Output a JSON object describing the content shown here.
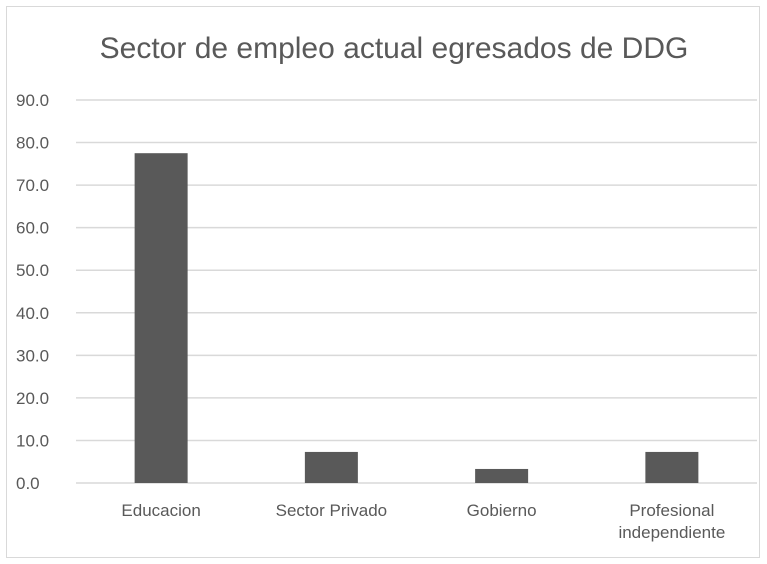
{
  "chart_data": {
    "type": "bar",
    "title": "Sector de empleo actual egresados de DDG",
    "categories": [
      [
        "Educacion"
      ],
      [
        "Sector Privado"
      ],
      [
        "Gobierno"
      ],
      [
        "Profesional",
        "independiente"
      ]
    ],
    "values": [
      77.5,
      7.3,
      3.3,
      7.3
    ],
    "ylim": [
      0,
      90
    ],
    "yticks": [
      "0.0",
      "10.0",
      "20.0",
      "30.0",
      "40.0",
      "50.0",
      "60.0",
      "70.0",
      "80.0",
      "90.0"
    ],
    "grid": true,
    "colors": {
      "bar": "#595959",
      "grid": "#d9d9d9",
      "text": "#595959"
    }
  }
}
